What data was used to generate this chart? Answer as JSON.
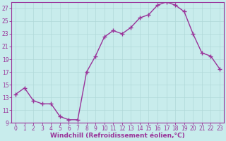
{
  "x": [
    0,
    1,
    2,
    3,
    4,
    5,
    6,
    7,
    8,
    9,
    10,
    11,
    12,
    13,
    14,
    15,
    16,
    17,
    18,
    19,
    20,
    21,
    22,
    23
  ],
  "y": [
    13.5,
    14.5,
    12.5,
    12.0,
    12.0,
    10.0,
    9.5,
    9.5,
    17.0,
    19.5,
    22.5,
    23.5,
    23.0,
    24.0,
    25.5,
    26.0,
    27.5,
    28.0,
    27.5,
    26.5,
    23.0,
    20.0,
    19.5,
    17.5
  ],
  "line_color": "#993399",
  "marker": "+",
  "marker_size": 4,
  "bg_color": "#c8ecec",
  "grid_color": "#b0d8d8",
  "xlabel": "Windchill (Refroidissement éolien,°C)",
  "ylim": [
    9,
    28
  ],
  "xlim": [
    -0.5,
    23.5
  ],
  "yticks": [
    9,
    11,
    13,
    15,
    17,
    19,
    21,
    23,
    25,
    27
  ],
  "xticks": [
    0,
    1,
    2,
    3,
    4,
    5,
    6,
    7,
    8,
    9,
    10,
    11,
    12,
    13,
    14,
    15,
    16,
    17,
    18,
    19,
    20,
    21,
    22,
    23
  ],
  "tick_color": "#993399",
  "label_color": "#993399",
  "spine_color": "#993399",
  "tick_fontsize": 5.5,
  "xlabel_fontsize": 6.5,
  "linewidth": 1.0
}
